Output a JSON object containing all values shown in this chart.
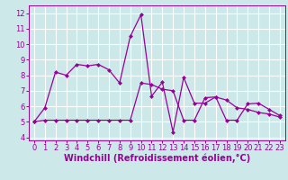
{
  "line1_x": [
    0,
    1,
    2,
    3,
    4,
    5,
    6,
    7,
    8,
    9,
    10,
    11,
    12,
    13,
    14,
    15,
    16,
    17,
    18,
    19,
    20,
    21,
    22,
    23
  ],
  "line1_y": [
    5.0,
    5.9,
    8.2,
    8.0,
    8.7,
    8.6,
    8.7,
    8.35,
    7.5,
    10.5,
    11.9,
    6.65,
    7.55,
    4.35,
    7.85,
    6.2,
    6.2,
    6.6,
    5.1,
    5.1,
    6.15,
    6.2,
    5.8,
    5.4
  ],
  "line2_x": [
    0,
    1,
    2,
    3,
    4,
    5,
    6,
    7,
    8,
    9,
    10,
    11,
    12,
    13,
    14,
    15,
    16,
    17,
    18,
    19,
    20,
    21,
    22,
    23
  ],
  "line2_y": [
    5.0,
    5.1,
    5.1,
    5.1,
    5.1,
    5.1,
    5.1,
    5.1,
    5.1,
    5.1,
    7.5,
    7.4,
    7.1,
    7.0,
    5.1,
    5.1,
    6.55,
    6.6,
    6.4,
    5.9,
    5.8,
    5.6,
    5.5,
    5.3
  ],
  "line_color": "#990099",
  "marker": "D",
  "markersize": 2.5,
  "linewidth": 0.9,
  "bg_color": "#cce8e8",
  "grid_color": "#ffffff",
  "xlabel": "Windchill (Refroidissement éolien,°C)",
  "xlim": [
    -0.5,
    23.5
  ],
  "ylim": [
    3.8,
    12.5
  ],
  "xticks": [
    0,
    1,
    2,
    3,
    4,
    5,
    6,
    7,
    8,
    9,
    10,
    11,
    12,
    13,
    14,
    15,
    16,
    17,
    18,
    19,
    20,
    21,
    22,
    23
  ],
  "yticks": [
    4,
    5,
    6,
    7,
    8,
    9,
    10,
    11,
    12
  ],
  "tick_fontsize": 6.0,
  "xlabel_fontsize": 7.0
}
